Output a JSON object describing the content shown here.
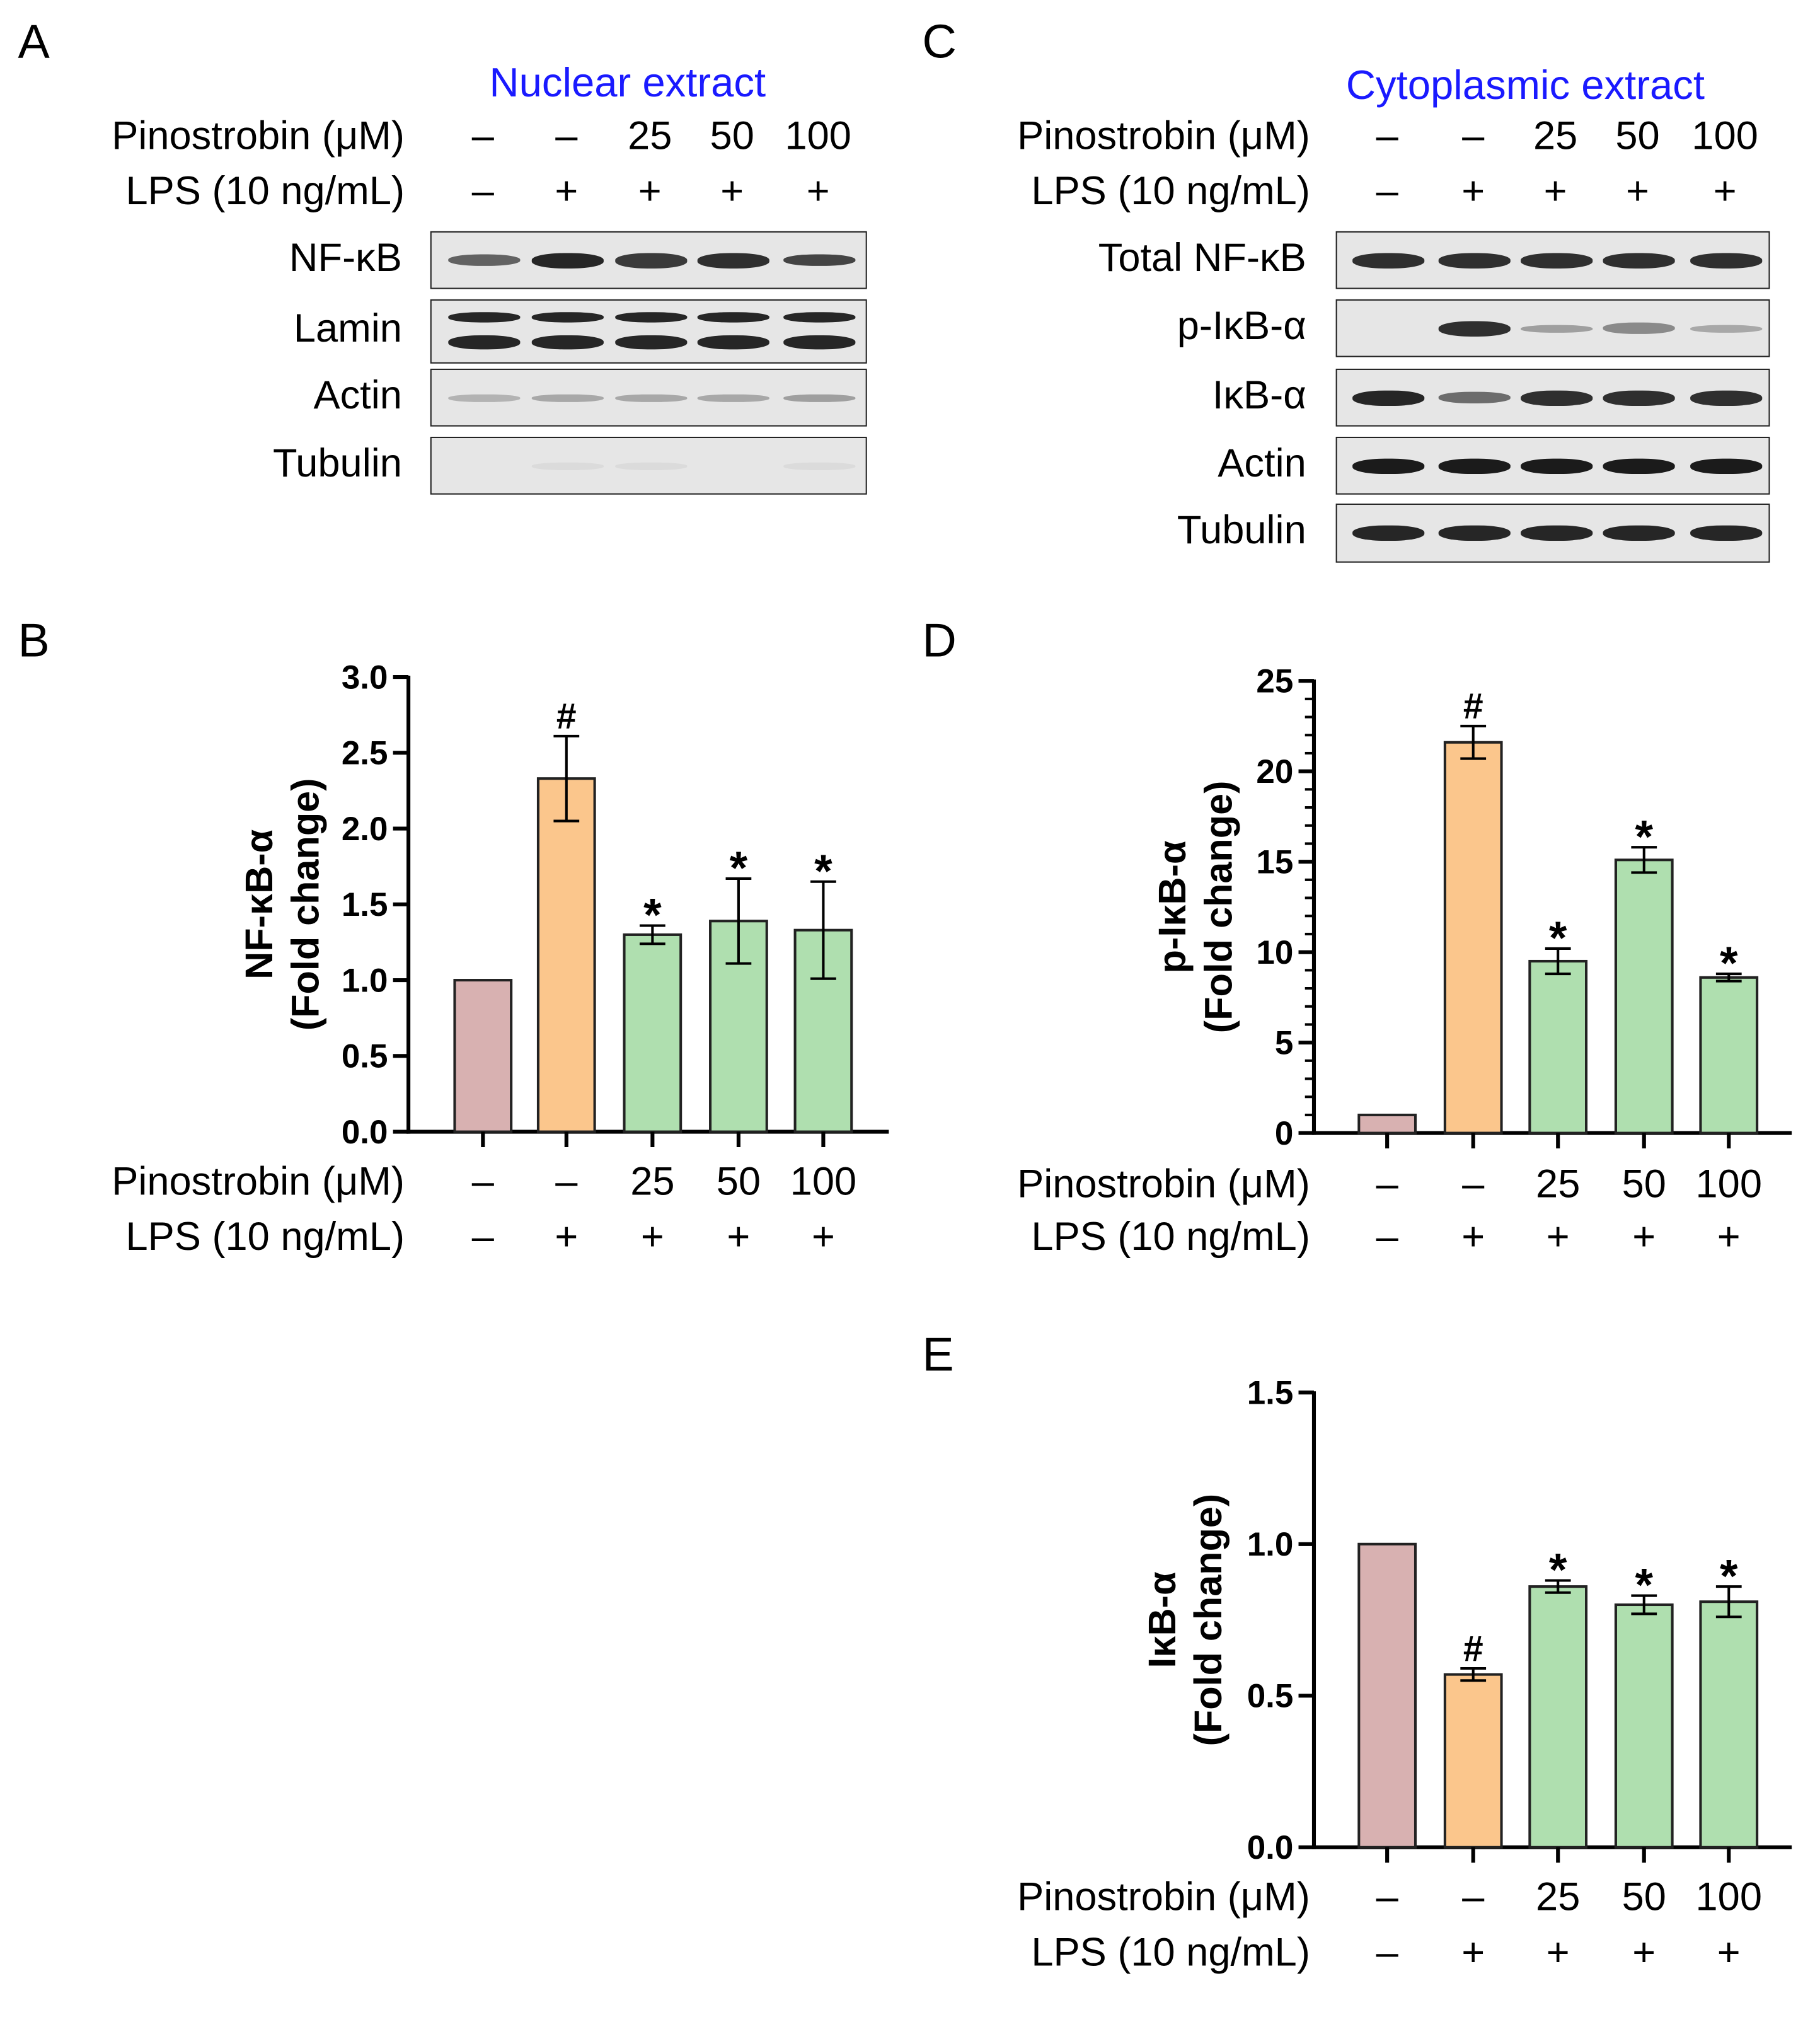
{
  "colors": {
    "control": "#d8b1b1",
    "lps": "#fbc68c",
    "treated": "#afdfaf",
    "heading": "#1a1aff",
    "band": "#1b1b1b"
  },
  "conditions": {
    "row1_label": "Pinostrobin (μM)",
    "row2_label": "LPS (10 ng/mL)",
    "pinostrobin": [
      "–",
      "–",
      "25",
      "50",
      "100"
    ],
    "lps": [
      "–",
      "+",
      "+",
      "+",
      "+"
    ]
  },
  "panel_a": {
    "letter": "A",
    "heading": "Nuclear extract",
    "blots": [
      {
        "label": "NF-κB",
        "intensity": [
          0.65,
          0.95,
          0.85,
          0.9,
          0.8
        ],
        "double": false
      },
      {
        "label": "Lamin",
        "intensity": [
          0.95,
          0.95,
          0.95,
          0.95,
          0.95
        ],
        "double": true
      },
      {
        "label": "Actin",
        "intensity": [
          0.25,
          0.3,
          0.3,
          0.3,
          0.35
        ],
        "double": false
      },
      {
        "label": "Tubulin",
        "intensity": [
          0.0,
          0.05,
          0.05,
          0.0,
          0.05
        ],
        "double": false
      }
    ]
  },
  "panel_c": {
    "letter": "C",
    "heading": "Cytoplasmic extract",
    "blots": [
      {
        "label": "Total NF-κB",
        "intensity": [
          0.9,
          0.9,
          0.9,
          0.9,
          0.9
        ],
        "double": false
      },
      {
        "label": "p-IκB-α",
        "intensity": [
          0.0,
          0.9,
          0.35,
          0.45,
          0.3
        ],
        "double": false
      },
      {
        "label": "IκB-α",
        "intensity": [
          0.95,
          0.6,
          0.9,
          0.9,
          0.9
        ],
        "double": false
      },
      {
        "label": "Actin",
        "intensity": [
          1.0,
          1.0,
          1.0,
          1.0,
          1.0
        ],
        "double": false
      },
      {
        "label": "Tubulin",
        "intensity": [
          0.95,
          0.95,
          0.95,
          0.95,
          0.95
        ],
        "double": false
      }
    ]
  },
  "chart_data": [
    {
      "panel": "B",
      "type": "bar",
      "categories": [
        "1",
        "2",
        "3",
        "4",
        "5"
      ],
      "values": [
        1.0,
        2.33,
        1.3,
        1.39,
        1.33
      ],
      "errors": [
        0,
        0.28,
        0.06,
        0.28,
        0.32
      ],
      "markers": [
        "",
        "#",
        "*",
        "*",
        "*"
      ],
      "ylabel_line1": "NF-κB-α",
      "ylabel_line2": "(Fold change)",
      "ylim": [
        0,
        3.0
      ],
      "yticks": [
        "0.0",
        "0.5",
        "1.0",
        "1.5",
        "2.0",
        "2.5",
        "3.0"
      ],
      "ytick_values": [
        0,
        0.5,
        1.0,
        1.5,
        2.0,
        2.5,
        3.0
      ],
      "minor_ticks": false
    },
    {
      "panel": "D",
      "type": "bar",
      "categories": [
        "1",
        "2",
        "3",
        "4",
        "5"
      ],
      "values": [
        1.0,
        21.6,
        9.5,
        15.1,
        8.6
      ],
      "errors": [
        0,
        0.9,
        0.7,
        0.7,
        0.2
      ],
      "markers": [
        "",
        "#",
        "*",
        "*",
        "*"
      ],
      "ylabel_line1": "p-IκB-α",
      "ylabel_line2": "(Fold change)",
      "ylim": [
        0,
        25
      ],
      "yticks": [
        "0",
        "5",
        "10",
        "15",
        "20",
        "25"
      ],
      "ytick_values": [
        0,
        5,
        10,
        15,
        20,
        25
      ],
      "minor_ticks": true
    },
    {
      "panel": "E",
      "type": "bar",
      "categories": [
        "1",
        "2",
        "3",
        "4",
        "5"
      ],
      "values": [
        1.0,
        0.57,
        0.86,
        0.8,
        0.81
      ],
      "errors": [
        0,
        0.02,
        0.02,
        0.03,
        0.05
      ],
      "markers": [
        "",
        "#",
        "*",
        "*",
        "*"
      ],
      "ylabel_line1": "IκB-α",
      "ylabel_line2": "(Fold change)",
      "ylim": [
        0,
        1.5
      ],
      "yticks": [
        "0.0",
        "0.5",
        "1.0",
        "1.5"
      ],
      "ytick_values": [
        0,
        0.5,
        1.0,
        1.5
      ],
      "minor_ticks": false
    }
  ]
}
